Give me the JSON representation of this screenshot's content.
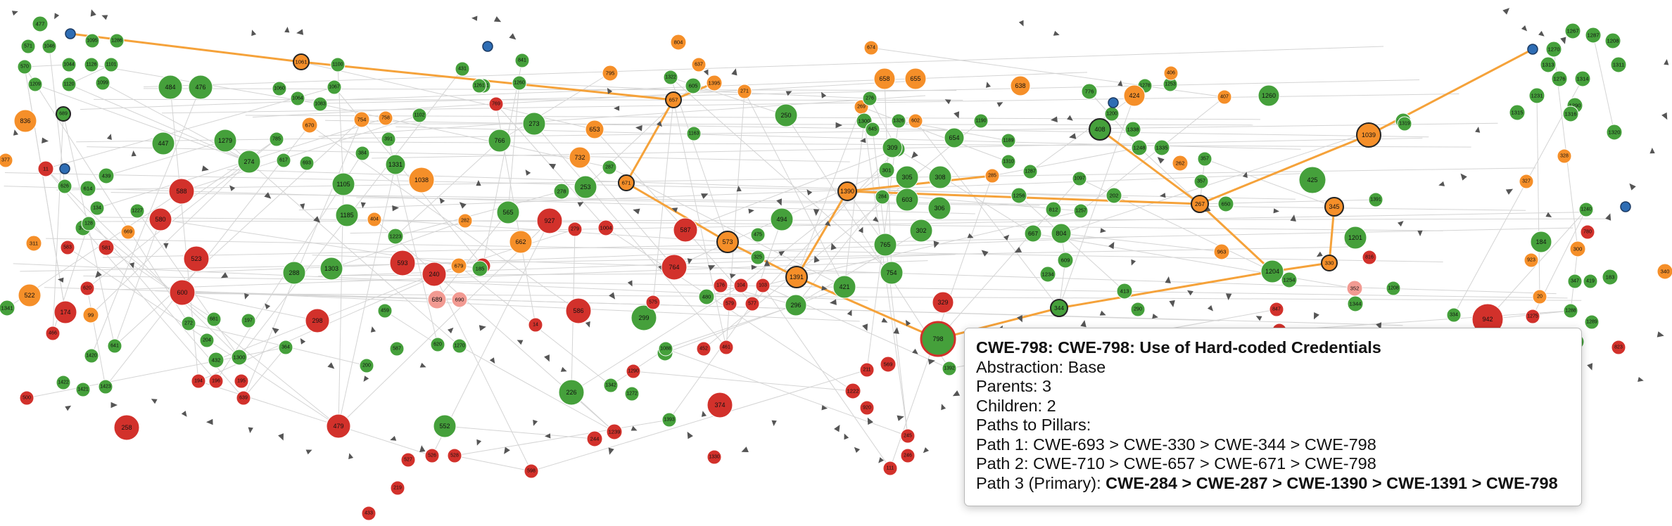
{
  "colors": {
    "base": "#45a03b",
    "category": "#f58f29",
    "variant": "#d2312b",
    "pillar": "#2e6db4",
    "light_red": "#f29a92",
    "edge": "#d4d4d4",
    "highlight_edge": "#f5a23a"
  },
  "nodes": [
    {
      "id": "477",
      "t": "g"
    },
    {
      "id": "571",
      "t": "g"
    },
    {
      "id": "1046",
      "t": "g"
    },
    {
      "id": "1095",
      "t": "g"
    },
    {
      "id": "1286",
      "t": "g"
    },
    {
      "id": "570",
      "t": "g"
    },
    {
      "id": "1044",
      "t": "g"
    },
    {
      "id": "1126",
      "t": "g"
    },
    {
      "id": "1101",
      "t": "g"
    },
    {
      "id": "1209",
      "t": "g"
    },
    {
      "id": "1120",
      "t": "g"
    },
    {
      "id": "1099",
      "t": "g"
    },
    {
      "id": "484",
      "t": "g"
    },
    {
      "id": "476",
      "t": "g"
    },
    {
      "id": "1061",
      "t": "o"
    },
    {
      "id": "1100",
      "t": "g"
    },
    {
      "id": "1060",
      "t": "g"
    },
    {
      "id": "1064",
      "t": "g"
    },
    {
      "id": "1067",
      "t": "g"
    },
    {
      "id": "1083",
      "t": "g"
    },
    {
      "id": "1091",
      "t": "g"
    },
    {
      "id": "431",
      "t": "g"
    },
    {
      "id": "841",
      "t": "g"
    },
    {
      "id": "1261",
      "t": "g"
    },
    {
      "id": "1260",
      "t": "g"
    },
    {
      "id": "769",
      "t": "r"
    },
    {
      "id": "804",
      "t": "o"
    },
    {
      "id": "637",
      "t": "o"
    },
    {
      "id": "795",
      "t": "o"
    },
    {
      "id": "1322",
      "t": "g"
    },
    {
      "id": "1395",
      "t": "o"
    },
    {
      "id": "605",
      "t": "g"
    },
    {
      "id": "657",
      "t": "o"
    },
    {
      "id": "674",
      "t": "o"
    },
    {
      "id": "658",
      "t": "o"
    },
    {
      "id": "655",
      "t": "o"
    },
    {
      "id": "836",
      "t": "o"
    },
    {
      "id": "689",
      "t": "g"
    },
    {
      "id": "754",
      "t": "o"
    },
    {
      "id": "758",
      "t": "o"
    },
    {
      "id": "670",
      "t": "o"
    },
    {
      "id": "1102",
      "t": "g"
    },
    {
      "id": "447",
      "t": "g"
    },
    {
      "id": "1279",
      "t": "g"
    },
    {
      "id": "785",
      "t": "g"
    },
    {
      "id": "274",
      "t": "g"
    },
    {
      "id": "617",
      "t": "g"
    },
    {
      "id": "693",
      "t": "g"
    },
    {
      "id": "384",
      "t": "g"
    },
    {
      "id": "1331",
      "t": "g"
    },
    {
      "id": "391",
      "t": "g"
    },
    {
      "id": "766",
      "t": "g"
    },
    {
      "id": "273",
      "t": "g"
    },
    {
      "id": "653",
      "t": "o"
    },
    {
      "id": "732",
      "t": "o"
    },
    {
      "id": "287",
      "t": "g"
    },
    {
      "id": "1163",
      "t": "g"
    },
    {
      "id": "377",
      "t": "o"
    },
    {
      "id": "11",
      "t": "r"
    },
    {
      "id": "439",
      "t": "g"
    },
    {
      "id": "626",
      "t": "g"
    },
    {
      "id": "614",
      "t": "g"
    },
    {
      "id": "588",
      "t": "r"
    },
    {
      "id": "1105",
      "t": "g"
    },
    {
      "id": "1038",
      "t": "o"
    },
    {
      "id": "271",
      "t": "o"
    },
    {
      "id": "250",
      "t": "g"
    },
    {
      "id": "269",
      "t": "o"
    },
    {
      "id": "276",
      "t": "g"
    },
    {
      "id": "1300",
      "t": "g"
    },
    {
      "id": "602",
      "t": "o"
    },
    {
      "id": "1326",
      "t": "g"
    },
    {
      "id": "669",
      "t": "o"
    },
    {
      "id": "375",
      "t": "g"
    },
    {
      "id": "134",
      "t": "g"
    },
    {
      "id": "128",
      "t": "g"
    },
    {
      "id": "580",
      "t": "r"
    },
    {
      "id": "1227",
      "t": "g"
    },
    {
      "id": "1185",
      "t": "g"
    },
    {
      "id": "404",
      "t": "o"
    },
    {
      "id": "282",
      "t": "o"
    },
    {
      "id": "565",
      "t": "g"
    },
    {
      "id": "927",
      "t": "r"
    },
    {
      "id": "253",
      "t": "g"
    },
    {
      "id": "278",
      "t": "g"
    },
    {
      "id": "671",
      "t": "o"
    },
    {
      "id": "573",
      "t": "o"
    },
    {
      "id": "662",
      "t": "o"
    },
    {
      "id": "587",
      "t": "r"
    },
    {
      "id": "311",
      "t": "o"
    },
    {
      "id": "583",
      "t": "r"
    },
    {
      "id": "581",
      "t": "r"
    },
    {
      "id": "523",
      "t": "r"
    },
    {
      "id": "1223",
      "t": "g"
    },
    {
      "id": "1303",
      "t": "g"
    },
    {
      "id": "288",
      "t": "g"
    },
    {
      "id": "593",
      "t": "r"
    },
    {
      "id": "240",
      "t": "r"
    },
    {
      "id": "679",
      "t": "o"
    },
    {
      "id": "589",
      "t": "r"
    },
    {
      "id": "185",
      "t": "g"
    },
    {
      "id": "764",
      "t": "r"
    },
    {
      "id": "522",
      "t": "o"
    },
    {
      "id": "174",
      "t": "r"
    },
    {
      "id": "99",
      "t": "o"
    },
    {
      "id": "600",
      "t": "r"
    },
    {
      "id": "689b",
      "t": "lr"
    },
    {
      "id": "690",
      "t": "lr"
    },
    {
      "id": "586",
      "t": "r"
    },
    {
      "id": "14",
      "t": "r"
    },
    {
      "id": "1391",
      "t": "o"
    },
    {
      "id": "494",
      "t": "g"
    },
    {
      "id": "298",
      "t": "r"
    },
    {
      "id": "1341",
      "t": "g"
    },
    {
      "id": "466",
      "t": "r"
    },
    {
      "id": "620",
      "t": "r"
    },
    {
      "id": "272",
      "t": "g"
    },
    {
      "id": "681",
      "t": "g"
    },
    {
      "id": "197",
      "t": "g"
    },
    {
      "id": "204",
      "t": "g"
    },
    {
      "id": "459",
      "t": "g"
    },
    {
      "id": "299",
      "t": "g"
    },
    {
      "id": "480",
      "t": "g"
    },
    {
      "id": "1420",
      "t": "g"
    },
    {
      "id": "641",
      "t": "g"
    },
    {
      "id": "432",
      "t": "g"
    },
    {
      "id": "1300b",
      "t": "g"
    },
    {
      "id": "364",
      "t": "g"
    },
    {
      "id": "587b",
      "t": "g"
    },
    {
      "id": "620b",
      "t": "g"
    },
    {
      "id": "621",
      "t": "g"
    },
    {
      "id": "1088",
      "t": "g"
    },
    {
      "id": "194",
      "t": "r"
    },
    {
      "id": "196",
      "t": "r"
    },
    {
      "id": "195",
      "t": "r"
    },
    {
      "id": "200",
      "t": "g"
    },
    {
      "id": "1270",
      "t": "g"
    },
    {
      "id": "1290",
      "t": "r"
    },
    {
      "id": "1422",
      "t": "g"
    },
    {
      "id": "1421",
      "t": "g"
    },
    {
      "id": "1423",
      "t": "g"
    },
    {
      "id": "500",
      "t": "r"
    },
    {
      "id": "639",
      "t": "r"
    },
    {
      "id": "258",
      "t": "r"
    },
    {
      "id": "479",
      "t": "r"
    },
    {
      "id": "226",
      "t": "g"
    },
    {
      "id": "1342",
      "t": "g"
    },
    {
      "id": "1272",
      "t": "g"
    },
    {
      "id": "552",
      "t": "g"
    },
    {
      "id": "374",
      "t": "r"
    },
    {
      "id": "244",
      "t": "r"
    },
    {
      "id": "1239",
      "t": "r"
    },
    {
      "id": "1393",
      "t": "g"
    },
    {
      "id": "527",
      "t": "r"
    },
    {
      "id": "526",
      "t": "r"
    },
    {
      "id": "528",
      "t": "r"
    },
    {
      "id": "219",
      "t": "r"
    },
    {
      "id": "433",
      "t": "r"
    },
    {
      "id": "598",
      "t": "r"
    },
    {
      "id": "1330",
      "t": "r"
    },
    {
      "id": "296",
      "t": "g"
    },
    {
      "id": "798",
      "t": "g",
      "hl": true
    },
    {
      "id": "329",
      "t": "r"
    },
    {
      "id": "1390",
      "t": "o"
    },
    {
      "id": "284",
      "t": "g"
    },
    {
      "id": "603",
      "t": "g"
    },
    {
      "id": "306",
      "t": "g"
    },
    {
      "id": "1392",
      "t": "g"
    },
    {
      "id": "308",
      "t": "g"
    },
    {
      "id": "654",
      "t": "g"
    },
    {
      "id": "1190",
      "t": "g"
    },
    {
      "id": "1189",
      "t": "g"
    },
    {
      "id": "305",
      "t": "g"
    },
    {
      "id": "302",
      "t": "g"
    },
    {
      "id": "765",
      "t": "g"
    },
    {
      "id": "754b",
      "t": "g"
    },
    {
      "id": "421",
      "t": "g"
    },
    {
      "id": "301",
      "t": "g"
    },
    {
      "id": "334",
      "t": "g"
    },
    {
      "id": "309",
      "t": "g"
    },
    {
      "id": "645",
      "t": "g"
    },
    {
      "id": "638",
      "t": "o"
    },
    {
      "id": "776",
      "t": "g"
    },
    {
      "id": "1278",
      "t": "g"
    },
    {
      "id": "1253",
      "t": "g"
    },
    {
      "id": "424",
      "t": "o"
    },
    {
      "id": "406",
      "t": "o"
    },
    {
      "id": "407",
      "t": "o"
    },
    {
      "id": "1260b",
      "t": "g"
    },
    {
      "id": "408",
      "t": "g"
    },
    {
      "id": "262",
      "t": "o"
    },
    {
      "id": "357",
      "t": "g"
    },
    {
      "id": "267",
      "t": "o"
    },
    {
      "id": "650",
      "t": "g"
    },
    {
      "id": "425",
      "t": "g"
    },
    {
      "id": "345",
      "t": "o"
    },
    {
      "id": "330",
      "t": "o"
    },
    {
      "id": "1204",
      "t": "g"
    },
    {
      "id": "963",
      "t": "o"
    },
    {
      "id": "413",
      "t": "g"
    },
    {
      "id": "667",
      "t": "g"
    },
    {
      "id": "804b",
      "t": "g"
    },
    {
      "id": "1234",
      "t": "g"
    },
    {
      "id": "609",
      "t": "g"
    },
    {
      "id": "344",
      "t": "g"
    },
    {
      "id": "290",
      "t": "g"
    },
    {
      "id": "942",
      "t": "r"
    },
    {
      "id": "334b",
      "t": "g"
    },
    {
      "id": "1039",
      "t": "o"
    },
    {
      "id": "1333",
      "t": "g"
    },
    {
      "id": "1267",
      "t": "g"
    },
    {
      "id": "1270b",
      "t": "g"
    },
    {
      "id": "1313",
      "t": "g"
    },
    {
      "id": "1287",
      "t": "g"
    },
    {
      "id": "1208",
      "t": "g"
    },
    {
      "id": "1311",
      "t": "g"
    },
    {
      "id": "1276",
      "t": "g"
    },
    {
      "id": "1314",
      "t": "g"
    },
    {
      "id": "1231",
      "t": "g"
    },
    {
      "id": "1290b",
      "t": "g"
    },
    {
      "id": "1316",
      "t": "g"
    },
    {
      "id": "1320",
      "t": "g"
    },
    {
      "id": "1315",
      "t": "g"
    },
    {
      "id": "184",
      "t": "g"
    },
    {
      "id": "923",
      "t": "o"
    },
    {
      "id": "300",
      "t": "o"
    },
    {
      "id": "327",
      "t": "o"
    },
    {
      "id": "328",
      "t": "o"
    },
    {
      "id": "780",
      "t": "r"
    },
    {
      "id": "20",
      "t": "o"
    },
    {
      "id": "1275",
      "t": "r"
    },
    {
      "id": "1288",
      "t": "g"
    },
    {
      "id": "1289",
      "t": "g"
    },
    {
      "id": "1325",
      "t": "g"
    },
    {
      "id": "823",
      "t": "r"
    },
    {
      "id": "347",
      "t": "g"
    },
    {
      "id": "419",
      "t": "g"
    },
    {
      "id": "183",
      "t": "g"
    },
    {
      "id": "1240",
      "t": "g"
    },
    {
      "id": "340",
      "t": "o"
    },
    {
      "id": "352",
      "t": "lr"
    },
    {
      "id": "816",
      "t": "r"
    },
    {
      "id": "1201",
      "t": "g"
    },
    {
      "id": "1344",
      "t": "g"
    },
    {
      "id": "1208b",
      "t": "g"
    },
    {
      "id": "847",
      "t": "r"
    },
    {
      "id": "581b",
      "t": "r"
    },
    {
      "id": "1222",
      "t": "r"
    },
    {
      "id": "920",
      "t": "r"
    },
    {
      "id": "569",
      "t": "r"
    },
    {
      "id": "211",
      "t": "r"
    },
    {
      "id": "1392b",
      "t": "g"
    },
    {
      "id": "1310",
      "t": "g"
    },
    {
      "id": "812",
      "t": "g"
    },
    {
      "id": "1256",
      "t": "g"
    },
    {
      "id": "1097",
      "t": "g"
    },
    {
      "id": "202",
      "t": "g"
    },
    {
      "id": "1319",
      "t": "g"
    },
    {
      "id": "1257",
      "t": "g"
    },
    {
      "id": "1200",
      "t": "g"
    },
    {
      "id": "1391b",
      "t": "g"
    },
    {
      "id": "1338",
      "t": "g"
    },
    {
      "id": "1248",
      "t": "g"
    },
    {
      "id": "1335",
      "t": "g"
    },
    {
      "id": "357b",
      "t": "g"
    },
    {
      "id": "575",
      "t": "r"
    },
    {
      "id": "579",
      "t": "r"
    },
    {
      "id": "577",
      "t": "r"
    },
    {
      "id": "104",
      "t": "r"
    },
    {
      "id": "103",
      "t": "r"
    },
    {
      "id": "176",
      "t": "r"
    },
    {
      "id": "452",
      "t": "r"
    },
    {
      "id": "461",
      "t": "r"
    },
    {
      "id": "475",
      "t": "g"
    },
    {
      "id": "325",
      "t": "g"
    },
    {
      "id": "1004",
      "t": "r"
    },
    {
      "id": "279",
      "t": "r"
    },
    {
      "id": "1254",
      "t": "g"
    },
    {
      "id": "285",
      "t": "o"
    },
    {
      "id": "1287b",
      "t": "g"
    },
    {
      "id": "245",
      "t": "r"
    },
    {
      "id": "246",
      "t": "r"
    },
    {
      "id": "111",
      "t": "r"
    }
  ],
  "tooltip": {
    "title": "CWE-798: CWE-798: Use of Hard-coded Credentials",
    "abstraction": "Abstraction: Base",
    "parents": "Parents: 3",
    "children": "Children: 2",
    "paths_header": "Paths to Pillars:",
    "path1": "Path 1: CWE-693 > CWE-330 > CWE-344 > CWE-798",
    "path2": "Path 2: CWE-710 > CWE-657 > CWE-671 > CWE-798",
    "path3_prefix": "Path 3 (Primary): ",
    "path3_chain": "CWE-284 > CWE-287 > CWE-1390 > CWE-1391 > CWE-798"
  }
}
